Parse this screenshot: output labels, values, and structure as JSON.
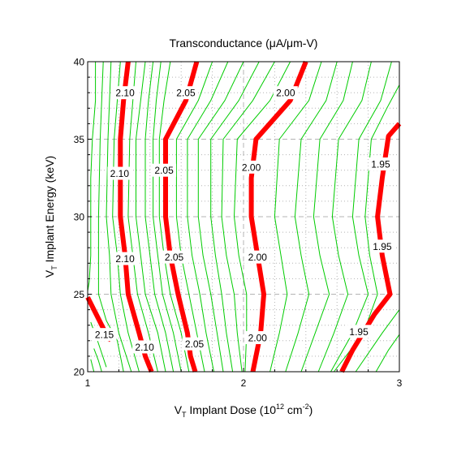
{
  "chart_data": {
    "type": "contour",
    "title": "Transconductance (μA/μm-V)",
    "xlabel": {
      "prefix": "V",
      "sub": "T",
      "text": " Implant Dose (10",
      "sup": "12",
      "unit_mid": " cm",
      "sup2": "-2",
      "suffix": ")"
    },
    "ylabel": {
      "prefix": "V",
      "sub": "T",
      "text": " Implant Energy (keV)"
    },
    "xlim": [
      1,
      3
    ],
    "ylim": [
      20,
      40
    ],
    "xticks": [
      1,
      2,
      3
    ],
    "yticks": [
      20,
      25,
      30,
      35,
      40
    ],
    "xtick_labels": [
      "1",
      "2",
      "3"
    ],
    "ytick_labels": [
      "20",
      "25",
      "30",
      "35",
      "40"
    ],
    "grid": true,
    "colors": {
      "major_contour": "#ff0000",
      "minor_contour": "#00cc00",
      "grid": "#b4b4b4",
      "frame": "#000000"
    },
    "major_contours": [
      {
        "label": "2.15",
        "points": [
          [
            1.0,
            24.8
          ],
          [
            1.05,
            23.8
          ],
          [
            1.1,
            22.8
          ],
          [
            1.15,
            22.0
          ]
        ],
        "labels_at": [
          [
            1.107,
            22.4
          ]
        ]
      },
      {
        "label": "2.10",
        "points": [
          [
            1.26,
            40
          ],
          [
            1.23,
            37.5
          ],
          [
            1.21,
            35
          ],
          [
            1.21,
            30
          ],
          [
            1.24,
            27.5
          ],
          [
            1.26,
            25
          ],
          [
            1.33,
            22.5
          ],
          [
            1.37,
            21
          ],
          [
            1.41,
            20
          ]
        ],
        "labels_at": [
          [
            1.24,
            38.0
          ],
          [
            1.205,
            32.8
          ],
          [
            1.24,
            27.3
          ],
          [
            1.365,
            21.6
          ]
        ]
      },
      {
        "label": "2.05",
        "points": [
          [
            1.7,
            40
          ],
          [
            1.63,
            37.5
          ],
          [
            1.5,
            35
          ],
          [
            1.5,
            30
          ],
          [
            1.53,
            27.5
          ],
          [
            1.58,
            25
          ],
          [
            1.64,
            22.5
          ],
          [
            1.66,
            21
          ],
          [
            1.69,
            20
          ]
        ],
        "labels_at": [
          [
            1.63,
            38.0
          ],
          [
            1.49,
            33.0
          ],
          [
            1.555,
            27.4
          ],
          [
            1.685,
            21.8
          ]
        ]
      },
      {
        "label": "2.00",
        "points": [
          [
            2.4,
            40
          ],
          [
            2.3,
            37.5
          ],
          [
            2.08,
            35
          ],
          [
            2.05,
            32.5
          ],
          [
            2.05,
            30
          ],
          [
            2.09,
            27.5
          ],
          [
            2.13,
            25
          ],
          [
            2.11,
            22.5
          ],
          [
            2.06,
            20
          ]
        ],
        "labels_at": [
          [
            2.27,
            38.0
          ],
          [
            2.05,
            33.2
          ],
          [
            2.09,
            27.4
          ],
          [
            2.09,
            22.2
          ]
        ]
      },
      {
        "label": "1.95",
        "points": [
          [
            3.0,
            36.0
          ],
          [
            2.93,
            35.2
          ],
          [
            2.89,
            32.5
          ],
          [
            2.86,
            30
          ],
          [
            2.89,
            27.5
          ],
          [
            2.94,
            25
          ],
          [
            2.84,
            23.7
          ],
          [
            2.7,
            21.4
          ],
          [
            2.63,
            20
          ]
        ],
        "labels_at": [
          [
            2.88,
            33.4
          ],
          [
            2.89,
            28.1
          ],
          [
            2.74,
            22.6
          ]
        ]
      }
    ],
    "minor_contours": [
      [
        [
          1.02,
          23.2
        ],
        [
          1.06,
          22.1
        ],
        [
          1.09,
          21.2
        ],
        [
          1.12,
          20.3
        ]
      ],
      [
        [
          1.04,
          21.5
        ],
        [
          1.07,
          20.7
        ],
        [
          1.09,
          20.0
        ]
      ],
      [
        [
          1.02,
          20.8
        ],
        [
          1.04,
          20.0
        ]
      ],
      [
        [
          1.05,
          40
        ],
        [
          1.05,
          37.5
        ],
        [
          1.03,
          35
        ],
        [
          1.02,
          32.5
        ],
        [
          1.02,
          30
        ],
        [
          1.02,
          27.5
        ],
        [
          1.01,
          25.8
        ],
        [
          1.0,
          25.2
        ]
      ],
      [
        [
          1.1,
          40
        ],
        [
          1.09,
          37.5
        ],
        [
          1.08,
          35
        ],
        [
          1.07,
          30
        ],
        [
          1.07,
          27.5
        ],
        [
          1.07,
          25
        ],
        [
          1.12,
          23.3
        ],
        [
          1.19,
          22.0
        ],
        [
          1.23,
          20.0
        ]
      ],
      [
        [
          1.15,
          40
        ],
        [
          1.14,
          37.5
        ],
        [
          1.13,
          35
        ],
        [
          1.12,
          30
        ],
        [
          1.14,
          27.5
        ],
        [
          1.15,
          25
        ],
        [
          1.2,
          22.5
        ],
        [
          1.28,
          20.0
        ]
      ],
      [
        [
          1.21,
          40
        ],
        [
          1.19,
          37.5
        ],
        [
          1.17,
          35
        ],
        [
          1.16,
          30
        ],
        [
          1.19,
          27.5
        ],
        [
          1.21,
          25
        ],
        [
          1.26,
          22.5
        ],
        [
          1.33,
          20.0
        ]
      ],
      [
        [
          1.31,
          40
        ],
        [
          1.29,
          37.5
        ],
        [
          1.27,
          35
        ],
        [
          1.26,
          30
        ],
        [
          1.29,
          27.5
        ],
        [
          1.32,
          25
        ],
        [
          1.39,
          22.5
        ],
        [
          1.45,
          20.0
        ]
      ],
      [
        [
          1.37,
          40
        ],
        [
          1.34,
          37.5
        ],
        [
          1.31,
          35
        ],
        [
          1.31,
          30
        ],
        [
          1.34,
          27.5
        ],
        [
          1.37,
          25
        ],
        [
          1.45,
          22.5
        ],
        [
          1.5,
          20.0
        ]
      ],
      [
        [
          1.42,
          40
        ],
        [
          1.39,
          37.5
        ],
        [
          1.37,
          35
        ],
        [
          1.37,
          30
        ],
        [
          1.4,
          27.5
        ],
        [
          1.43,
          25
        ],
        [
          1.5,
          22.5
        ],
        [
          1.55,
          20.0
        ]
      ],
      [
        [
          1.47,
          40
        ],
        [
          1.44,
          37.5
        ],
        [
          1.42,
          35
        ],
        [
          1.42,
          30
        ],
        [
          1.45,
          27.5
        ],
        [
          1.48,
          25
        ],
        [
          1.55,
          22.5
        ],
        [
          1.6,
          20.0
        ]
      ],
      [
        [
          1.53,
          40
        ],
        [
          1.49,
          37.5
        ],
        [
          1.46,
          35
        ],
        [
          1.46,
          30
        ],
        [
          1.49,
          27.5
        ],
        [
          1.53,
          25
        ],
        [
          1.6,
          22.5
        ],
        [
          1.65,
          20.0
        ]
      ],
      [
        [
          1.8,
          40
        ],
        [
          1.71,
          37.5
        ],
        [
          1.57,
          35
        ],
        [
          1.57,
          30
        ],
        [
          1.6,
          27.5
        ],
        [
          1.65,
          25
        ],
        [
          1.7,
          22.5
        ],
        [
          1.75,
          20.0
        ]
      ],
      [
        [
          1.9,
          40
        ],
        [
          1.79,
          37.5
        ],
        [
          1.64,
          35
        ],
        [
          1.64,
          30
        ],
        [
          1.67,
          27.5
        ],
        [
          1.72,
          25
        ],
        [
          1.76,
          22.5
        ],
        [
          1.81,
          20.0
        ]
      ],
      [
        [
          2.0,
          40
        ],
        [
          1.88,
          37.5
        ],
        [
          1.71,
          35
        ],
        [
          1.71,
          30
        ],
        [
          1.74,
          27.5
        ],
        [
          1.79,
          25
        ],
        [
          1.83,
          22.5
        ],
        [
          1.87,
          20.0
        ]
      ],
      [
        [
          2.1,
          40
        ],
        [
          1.97,
          37.5
        ],
        [
          1.79,
          35
        ],
        [
          1.79,
          30
        ],
        [
          1.82,
          27.5
        ],
        [
          1.86,
          25
        ],
        [
          1.89,
          22.5
        ],
        [
          1.93,
          20.0
        ]
      ],
      [
        [
          2.2,
          40
        ],
        [
          2.06,
          37.5
        ],
        [
          1.87,
          35
        ],
        [
          1.86,
          30
        ],
        [
          1.89,
          27.5
        ],
        [
          1.94,
          25
        ],
        [
          1.96,
          22.5
        ],
        [
          1.99,
          20.0
        ]
      ],
      [
        [
          2.3,
          40
        ],
        [
          2.17,
          37.5
        ],
        [
          1.96,
          35
        ],
        [
          1.94,
          30
        ],
        [
          1.97,
          27.5
        ],
        [
          2.02,
          25
        ],
        [
          2.02,
          22.5
        ],
        [
          2.01,
          20.0
        ]
      ],
      [
        [
          2.5,
          40
        ],
        [
          2.42,
          37.5
        ],
        [
          2.23,
          35
        ],
        [
          2.2,
          30
        ],
        [
          2.24,
          27.5
        ],
        [
          2.28,
          25
        ],
        [
          2.23,
          22.5
        ],
        [
          2.17,
          20.0
        ]
      ],
      [
        [
          2.6,
          40
        ],
        [
          2.53,
          37.5
        ],
        [
          2.37,
          35
        ],
        [
          2.33,
          30
        ],
        [
          2.37,
          27.5
        ],
        [
          2.42,
          25
        ],
        [
          2.35,
          22.5
        ],
        [
          2.27,
          20.0
        ]
      ],
      [
        [
          2.7,
          40
        ],
        [
          2.64,
          37.5
        ],
        [
          2.49,
          35
        ],
        [
          2.45,
          30
        ],
        [
          2.49,
          27.5
        ],
        [
          2.55,
          25
        ],
        [
          2.46,
          22.5
        ],
        [
          2.37,
          20.0
        ]
      ],
      [
        [
          2.82,
          40
        ],
        [
          2.76,
          37.5
        ],
        [
          2.61,
          35
        ],
        [
          2.57,
          30
        ],
        [
          2.61,
          27.5
        ],
        [
          2.67,
          25
        ],
        [
          2.58,
          22.5
        ],
        [
          2.48,
          20.0
        ]
      ],
      [
        [
          2.95,
          40
        ],
        [
          2.88,
          37.5
        ],
        [
          2.74,
          35
        ],
        [
          2.7,
          30
        ],
        [
          2.74,
          27.5
        ],
        [
          2.8,
          25
        ],
        [
          2.7,
          22.5
        ],
        [
          2.56,
          20.0
        ]
      ],
      [
        [
          3.0,
          38.5
        ],
        [
          2.92,
          37
        ],
        [
          2.82,
          35
        ],
        [
          2.78,
          30
        ],
        [
          2.81,
          27.5
        ],
        [
          2.86,
          25
        ],
        [
          2.77,
          22.5
        ],
        [
          2.58,
          20.0
        ]
      ],
      [
        [
          3.0,
          33.8
        ],
        [
          3.0,
          26.0
        ]
      ],
      [
        [
          3.0,
          24.0
        ],
        [
          2.89,
          22.5
        ],
        [
          2.72,
          20.0
        ]
      ],
      [
        [
          3.0,
          22.4
        ],
        [
          2.93,
          21.4
        ],
        [
          2.85,
          20.0
        ]
      ]
    ]
  }
}
